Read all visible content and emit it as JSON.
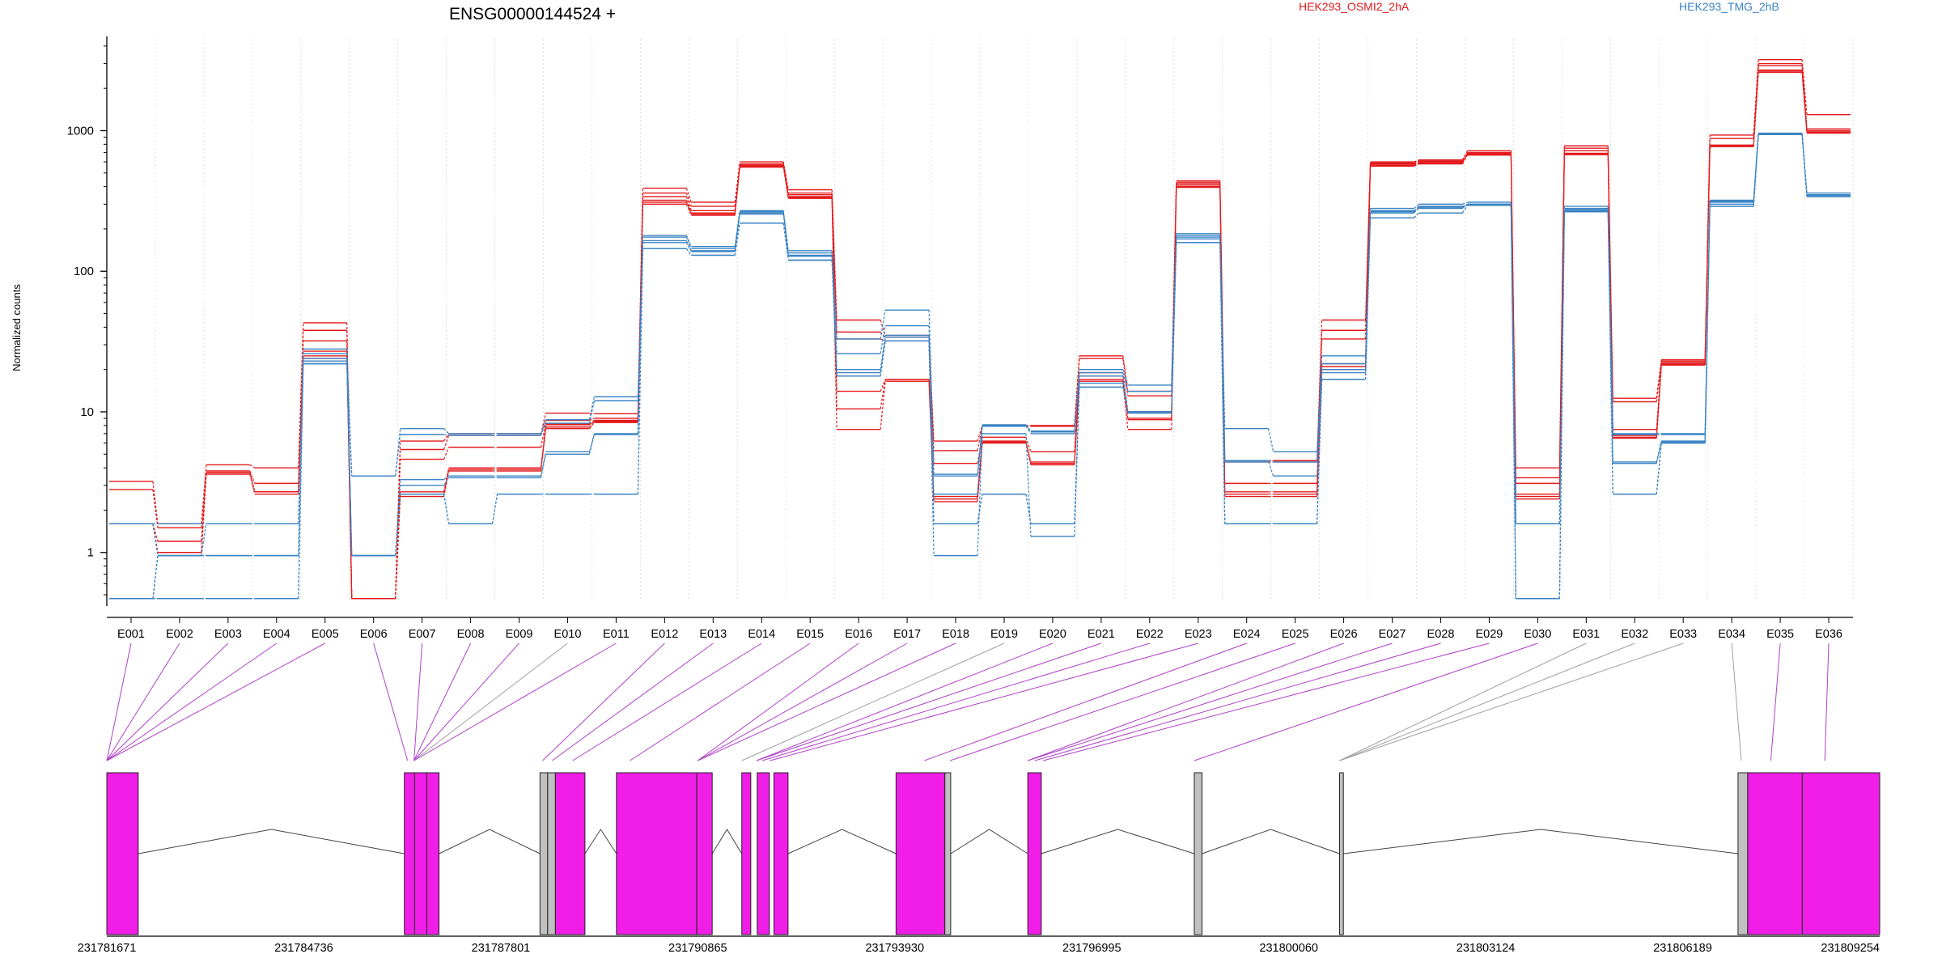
{
  "header": {
    "title": "ENSG00000144524 +",
    "legend": [
      {
        "label": "HEK293_OSMI2_2hA",
        "color": "#e31a1c"
      },
      {
        "label": "HEK293_TMG_2hB",
        "color": "#3a84c4"
      }
    ]
  },
  "axes": {
    "ylabel": "Normalized counts",
    "yticks": [
      {
        "label": "1",
        "value": 1
      },
      {
        "label": "10",
        "value": 10
      },
      {
        "label": "100",
        "value": 100
      },
      {
        "label": "1000",
        "value": 1000
      }
    ]
  },
  "genome": {
    "ticks": [
      {
        "label": "231781671",
        "pos": 231781671
      },
      {
        "label": "231784736",
        "pos": 231784736
      },
      {
        "label": "231787801",
        "pos": 231787801
      },
      {
        "label": "231790865",
        "pos": 231790865
      },
      {
        "label": "231793930",
        "pos": 231793930
      },
      {
        "label": "231796995",
        "pos": 231796995
      },
      {
        "label": "231800060",
        "pos": 231800060
      },
      {
        "label": "231803124",
        "pos": 231803124
      },
      {
        "label": "231806189",
        "pos": 231806189
      },
      {
        "label": "231809254",
        "pos": 231809254
      }
    ]
  },
  "colors": {
    "red": "#e31a1c",
    "blue": "#3a84c4",
    "exon_tested": "#f01ee6",
    "exon_untested": "#c0c0c0",
    "link_tested": "#b040c8",
    "link_untested": "#a0a0a0"
  },
  "chart_data": {
    "type": "line",
    "title": "ENSG00000144524 +",
    "ylabel": "Normalized counts",
    "yscale": "log",
    "ylim": [
      0.45,
      4500
    ],
    "categories": [
      "E001",
      "E002",
      "E003",
      "E004",
      "E005",
      "E006",
      "E007",
      "E008",
      "E009",
      "E010",
      "E011",
      "E012",
      "E013",
      "E014",
      "E015",
      "E016",
      "E017",
      "E018",
      "E019",
      "E020",
      "E021",
      "E022",
      "E023",
      "E024",
      "E025",
      "E026",
      "E027",
      "E028",
      "E029",
      "E030",
      "E031",
      "E032",
      "E033",
      "E034",
      "E035",
      "E036"
    ],
    "series": [
      {
        "name": "HEK293_OSMI2_2hA",
        "color": "red",
        "values": [
          3.2,
          1.6,
          4.2,
          4.0,
          43,
          0.47,
          6.2,
          7.0,
          7.0,
          9.8,
          9.7,
          390,
          310,
          600,
          380,
          45,
          35,
          6.2,
          8.0,
          8.0,
          25,
          14,
          440,
          4.5,
          4.5,
          45,
          600,
          620,
          720,
          4.0,
          780,
          12.5,
          23.5,
          930,
          3200,
          1300
        ]
      },
      {
        "name": "HEK293_OSMI2_2hA",
        "color": "red",
        "values": [
          2.8,
          1.5,
          3.8,
          3.1,
          38,
          0.47,
          5.4,
          6.8,
          6.8,
          8.7,
          9.0,
          360,
          290,
          580,
          360,
          37,
          34,
          5.3,
          7.9,
          7.9,
          24,
          13,
          430,
          4.4,
          4.4,
          38,
          590,
          610,
          700,
          3.4,
          750,
          11.8,
          23.0,
          880,
          3000,
          1030
        ]
      },
      {
        "name": "HEK293_OSMI2_2hA",
        "color": "red",
        "values": [
          1.6,
          1.2,
          3.7,
          2.7,
          32,
          0.47,
          4.6,
          5.6,
          5.6,
          8.2,
          8.7,
          340,
          270,
          570,
          350,
          33,
          32,
          4.3,
          6.6,
          5.2,
          19,
          10,
          420,
          3.1,
          3.1,
          33,
          580,
          600,
          690,
          3.1,
          720,
          7.5,
          22.5,
          790,
          2900,
          1000
        ]
      },
      {
        "name": "HEK293_OSMI2_2hA",
        "color": "red",
        "values": [
          1.6,
          1.0,
          3.7,
          2.7,
          27,
          0.47,
          2.7,
          4.0,
          4.0,
          8.1,
          8.6,
          320,
          260,
          560,
          340,
          14,
          17,
          2.5,
          6.2,
          4.4,
          18,
          9,
          410,
          2.7,
          2.7,
          22,
          570,
          590,
          680,
          2.6,
          690,
          6.8,
          22.0,
          780,
          2700,
          980
        ]
      },
      {
        "name": "HEK293_OSMI2_2hA",
        "color": "red",
        "values": [
          1.6,
          1.0,
          3.7,
          2.7,
          25,
          0.47,
          2.6,
          3.9,
          3.9,
          7.8,
          8.5,
          310,
          255,
          555,
          335,
          10.5,
          17,
          2.4,
          6.1,
          4.3,
          17,
          8.8,
          400,
          2.6,
          2.6,
          21,
          565,
          585,
          675,
          2.5,
          680,
          6.6,
          21.8,
          775,
          2650,
          970
        ]
      },
      {
        "name": "HEK293_OSMI2_2hA",
        "color": "red",
        "values": [
          1.6,
          1.0,
          3.6,
          2.6,
          24,
          0.47,
          2.5,
          3.8,
          3.8,
          7.6,
          8.4,
          300,
          250,
          550,
          330,
          7.5,
          16.5,
          2.3,
          6.0,
          4.2,
          16.5,
          7.5,
          395,
          2.5,
          2.5,
          20,
          560,
          580,
          670,
          2.4,
          675,
          6.5,
          21.5,
          770,
          2600,
          960
        ]
      },
      {
        "name": "HEK293_TMG_2hB",
        "color": "blue",
        "values": [
          1.6,
          1.6,
          1.6,
          1.6,
          28,
          3.5,
          7.6,
          7.0,
          7.0,
          8.8,
          12.8,
          180,
          150,
          270,
          140,
          33,
          53,
          3.6,
          8.1,
          7.3,
          20,
          15.5,
          185,
          7.6,
          5.2,
          25,
          280,
          300,
          310,
          1.6,
          290,
          7.0,
          7.0,
          320,
          960,
          360
        ]
      },
      {
        "name": "HEK293_TMG_2hB",
        "color": "blue",
        "values": [
          1.6,
          0.95,
          1.6,
          1.6,
          26,
          3.5,
          6.9,
          6.8,
          6.8,
          8.3,
          12.0,
          175,
          145,
          265,
          135,
          26,
          41,
          3.5,
          8.0,
          7.2,
          19,
          14,
          180,
          4.5,
          4.4,
          22,
          270,
          290,
          300,
          1.6,
          280,
          6.9,
          6.9,
          315,
          955,
          350
        ]
      },
      {
        "name": "HEK293_TMG_2hB",
        "color": "blue",
        "values": [
          0.47,
          0.95,
          0.95,
          0.95,
          24,
          0.95,
          3.3,
          3.5,
          3.5,
          5.2,
          7.0,
          165,
          140,
          260,
          130,
          20,
          35,
          2.6,
          7.9,
          7.0,
          18,
          10,
          175,
          4.4,
          3.5,
          20,
          265,
          285,
          295,
          1.6,
          275,
          4.4,
          6.2,
          310,
          950,
          345
        ]
      },
      {
        "name": "HEK293_TMG_2hB",
        "color": "blue",
        "values": [
          0.47,
          0.47,
          0.47,
          0.47,
          22,
          0.95,
          2.6,
          1.6,
          2.6,
          2.6,
          2.6,
          145,
          130,
          220,
          120,
          18,
          32,
          1.6,
          2.6,
          1.6,
          15,
          10,
          160,
          1.6,
          1.6,
          17,
          240,
          260,
          295,
          0.47,
          265,
          2.6,
          6.0,
          290,
          940,
          340
        ]
      },
      {
        "name": "HEK293_TMG_2hB",
        "color": "blue",
        "values": [
          0.47,
          0.47,
          0.47,
          0.47,
          22,
          0.95,
          2.6,
          1.6,
          2.6,
          2.6,
          2.6,
          145,
          130,
          220,
          120,
          18,
          32,
          1.6,
          2.6,
          1.6,
          15,
          10,
          160,
          1.6,
          1.6,
          17,
          240,
          260,
          295,
          0.47,
          265,
          2.6,
          6.0,
          290,
          940,
          340
        ]
      },
      {
        "name": "HEK293_TMG_2hB",
        "color": "blue",
        "values": [
          0.47,
          0.95,
          0.95,
          0.95,
          23,
          0.95,
          3.0,
          3.4,
          3.4,
          5.0,
          6.9,
          160,
          138,
          255,
          128,
          19,
          34,
          0.95,
          7.0,
          1.3,
          16,
          9.8,
          170,
          1.6,
          1.6,
          19,
          260,
          280,
          300,
          0.47,
          270,
          4.3,
          6.1,
          300,
          945,
          342
        ]
      }
    ],
    "exons_tested": [
      true,
      true,
      true,
      true,
      true,
      true,
      true,
      true,
      true,
      false,
      true,
      true,
      true,
      true,
      true,
      true,
      true,
      true,
      false,
      true,
      true,
      true,
      true,
      true,
      true,
      true,
      true,
      true,
      true,
      true,
      false,
      false,
      false,
      false,
      true,
      true
    ],
    "gene_model_blocks": [
      {
        "kind": "tested",
        "start": 231781671,
        "end": 231782160
      },
      {
        "kind": "tested",
        "start": 231786300,
        "end": 231786460
      },
      {
        "kind": "tested",
        "start": 231786460,
        "end": 231786650
      },
      {
        "kind": "tested",
        "start": 231786650,
        "end": 231786840
      },
      {
        "kind": "untested",
        "start": 231788410,
        "end": 231788530
      },
      {
        "kind": "untested",
        "start": 231788530,
        "end": 231788650
      },
      {
        "kind": "tested",
        "start": 231788650,
        "end": 231789110
      },
      {
        "kind": "tested",
        "start": 231789600,
        "end": 231790850
      },
      {
        "kind": "tested",
        "start": 231790850,
        "end": 231791090
      },
      {
        "kind": "tested",
        "start": 231791550,
        "end": 231791690
      },
      {
        "kind": "tested",
        "start": 231791790,
        "end": 231791980
      },
      {
        "kind": "tested",
        "start": 231792050,
        "end": 231792270
      },
      {
        "kind": "tested",
        "start": 231793950,
        "end": 231794710
      },
      {
        "kind": "untested",
        "start": 231794710,
        "end": 231794800
      },
      {
        "kind": "tested",
        "start": 231796000,
        "end": 231796210
      },
      {
        "kind": "untested",
        "start": 231798590,
        "end": 231798710
      },
      {
        "kind": "untested",
        "start": 231800850,
        "end": 231800910
      },
      {
        "kind": "untested",
        "start": 231807050,
        "end": 231807200
      },
      {
        "kind": "tested",
        "start": 231807200,
        "end": 231808050
      },
      {
        "kind": "tested",
        "start": 231808050,
        "end": 231809254
      }
    ],
    "exon_anchor_positions": [
      231781671,
      231781671,
      231781671,
      231781671,
      231781671,
      231786350,
      231786450,
      231786450,
      231786450,
      231786450,
      231786450,
      231788450,
      231788600,
      231788920,
      231789810,
      231790865,
      231790865,
      231790865,
      231791550,
      231791780,
      231791780,
      231791870,
      231791990,
      231794390,
      231794790,
      231796000,
      231796000,
      231796110,
      231796240,
      231798590,
      231800850,
      231800850,
      231800850,
      231807100,
      231807560,
      231808400
    ]
  }
}
